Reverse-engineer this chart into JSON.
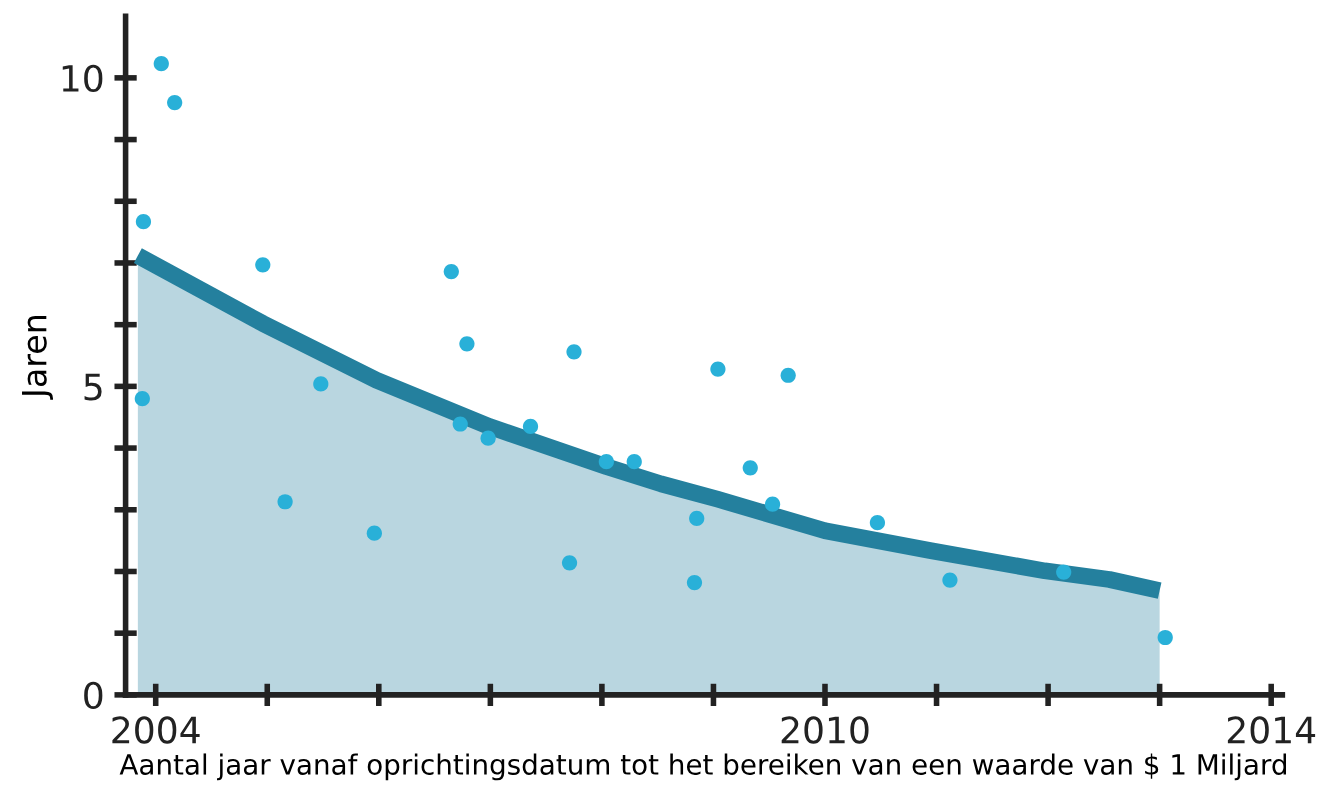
{
  "chart_data": {
    "type": "scatter",
    "xlabel": "Aantal jaar vanaf oprichtingsdatum tot het bereiken van een waarde van $ 1 Miljard",
    "ylabel": "Jaren",
    "xlim": [
      2003.73,
      2014.1
    ],
    "ylim": [
      0,
      11
    ],
    "xticks": [
      2004,
      {
        "value": 2005,
        "label": null
      },
      {
        "value": 2006,
        "label": null
      },
      {
        "value": 2007,
        "label": null
      },
      {
        "value": 2008,
        "label": null
      },
      {
        "value": 2009,
        "label": null
      },
      2010,
      {
        "value": 2011,
        "label": null
      },
      {
        "value": 2012,
        "label": null
      },
      {
        "value": 2013,
        "label": null
      },
      2014
    ],
    "yticks": [
      0,
      {
        "value": 1,
        "label": null
      },
      {
        "value": 2,
        "label": null
      },
      {
        "value": 3,
        "label": null
      },
      {
        "value": 4,
        "label": null
      },
      5,
      {
        "value": 6,
        "label": null
      },
      {
        "value": 7,
        "label": null
      },
      {
        "value": 8,
        "label": null
      },
      {
        "value": 9,
        "label": null
      },
      10
    ],
    "grid": false,
    "series": [
      {
        "type": "area",
        "color": "#24809e",
        "x": [
          2003.84,
          2004.96,
          2005.98,
          2006.99,
          2008.04,
          2008.53,
          2009.04,
          2010.0,
          2010.94,
          2011.97,
          2012.55,
          2013.0
        ],
        "values": [
          7.12,
          6.02,
          5.1,
          4.35,
          3.7,
          3.42,
          3.17,
          2.66,
          2.34,
          2.01,
          1.87,
          1.69
        ]
      },
      {
        "marker": "circle",
        "color": "#29b0d8",
        "x": [
          2003.88,
          2003.89,
          2004.05,
          2004.17,
          2004.96,
          2005.16,
          2005.48,
          2005.96,
          2006.65,
          2006.79,
          2006.73,
          2006.98,
          2007.36,
          2007.75,
          2007.71,
          2008.04,
          2008.29,
          2008.85,
          2008.83,
          2009.04,
          2009.33,
          2009.53,
          2009.67,
          2010.47,
          2011.12,
          2012.14,
          2013.05
        ],
        "values": [
          4.8,
          7.67,
          10.23,
          9.6,
          6.97,
          3.13,
          5.04,
          2.62,
          6.86,
          5.69,
          4.39,
          4.16,
          4.35,
          5.56,
          2.14,
          3.78,
          3.78,
          2.86,
          1.82,
          5.28,
          3.68,
          3.09,
          5.18,
          2.79,
          1.86,
          1.99,
          0.93
        ]
      }
    ]
  }
}
